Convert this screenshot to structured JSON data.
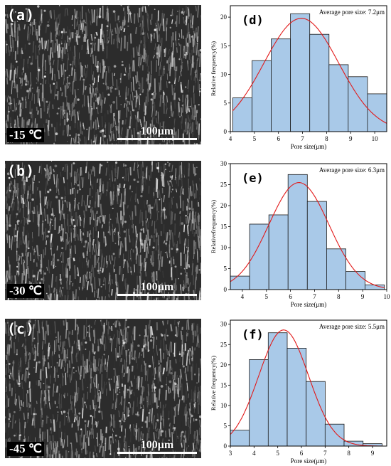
{
  "sem_panels": [
    {
      "label": "(a)",
      "temperature": "-15 ℃",
      "scale_bar": "100μm"
    },
    {
      "label": "(b)",
      "temperature": "-30 ℃",
      "scale_bar": "100μm"
    },
    {
      "label": "(c)",
      "temperature": "-45 ℃",
      "scale_bar": "100μm"
    }
  ],
  "colors": {
    "bar_fill": "#a9c9e8",
    "bar_stroke": "#1a1a1a",
    "fit_curve": "#e21a1a",
    "sem_background": "#2c2c2c"
  },
  "chart_data": [
    {
      "type": "bar",
      "panel_label": "(d)",
      "annotation": "Average pore size: 7.2μm",
      "xlabel": "Pore size(μm)",
      "ylabel": "Relative frequency(%)",
      "xlim": [
        4,
        10.5
      ],
      "ylim": [
        0,
        22
      ],
      "xticks": [
        4,
        5,
        6,
        7,
        8,
        9,
        10
      ],
      "yticks": [
        0,
        5,
        10,
        15,
        20
      ],
      "bin_width": 0.8,
      "x": [
        4.5,
        5.3,
        6.1,
        6.9,
        7.7,
        8.5,
        9.3,
        10.1
      ],
      "values": [
        5.9,
        12.4,
        16.2,
        20.6,
        17.0,
        11.7,
        9.6,
        6.6
      ],
      "fit": {
        "type": "gaussian",
        "mean": 6.95,
        "sd": 1.55,
        "peak": 19.8
      }
    },
    {
      "type": "bar",
      "panel_label": "(e)",
      "annotation": "Average pore size: 6.3μm",
      "xlabel": "Pore size(μm)",
      "ylabel": "Relativefrequency(%)",
      "xlim": [
        3.5,
        10
      ],
      "ylim": [
        0,
        30
      ],
      "xticks": [
        4,
        5,
        6,
        7,
        8,
        9,
        10
      ],
      "yticks": [
        0,
        5,
        10,
        15,
        20,
        25,
        30
      ],
      "bin_width": 0.8,
      "x": [
        3.9,
        4.7,
        5.5,
        6.3,
        7.1,
        7.9,
        8.7,
        9.5
      ],
      "values": [
        3.2,
        15.6,
        17.8,
        27.4,
        21.0,
        9.7,
        4.3,
        1.1
      ],
      "fit": {
        "type": "gaussian",
        "mean": 6.35,
        "sd": 1.25,
        "peak": 25.5
      }
    },
    {
      "type": "bar",
      "panel_label": "(f)",
      "annotation": "Average pore size: 5.5μm",
      "xlabel": "Pore size(μm)",
      "ylabel": "Relative frequency(%)",
      "xlim": [
        3,
        9.6
      ],
      "ylim": [
        0,
        31
      ],
      "xticks": [
        3,
        4,
        5,
        6,
        7,
        8,
        9
      ],
      "yticks": [
        0,
        5,
        10,
        15,
        20,
        25,
        30
      ],
      "bin_width": 0.8,
      "x": [
        3.4,
        4.2,
        5.0,
        5.8,
        6.6,
        7.4,
        8.2,
        9.0
      ],
      "values": [
        3.9,
        21.3,
        27.9,
        24.1,
        15.9,
        5.4,
        1.2,
        0.6
      ],
      "fit": {
        "type": "gaussian",
        "mean": 5.25,
        "sd": 1.05,
        "peak": 28.6
      }
    }
  ]
}
